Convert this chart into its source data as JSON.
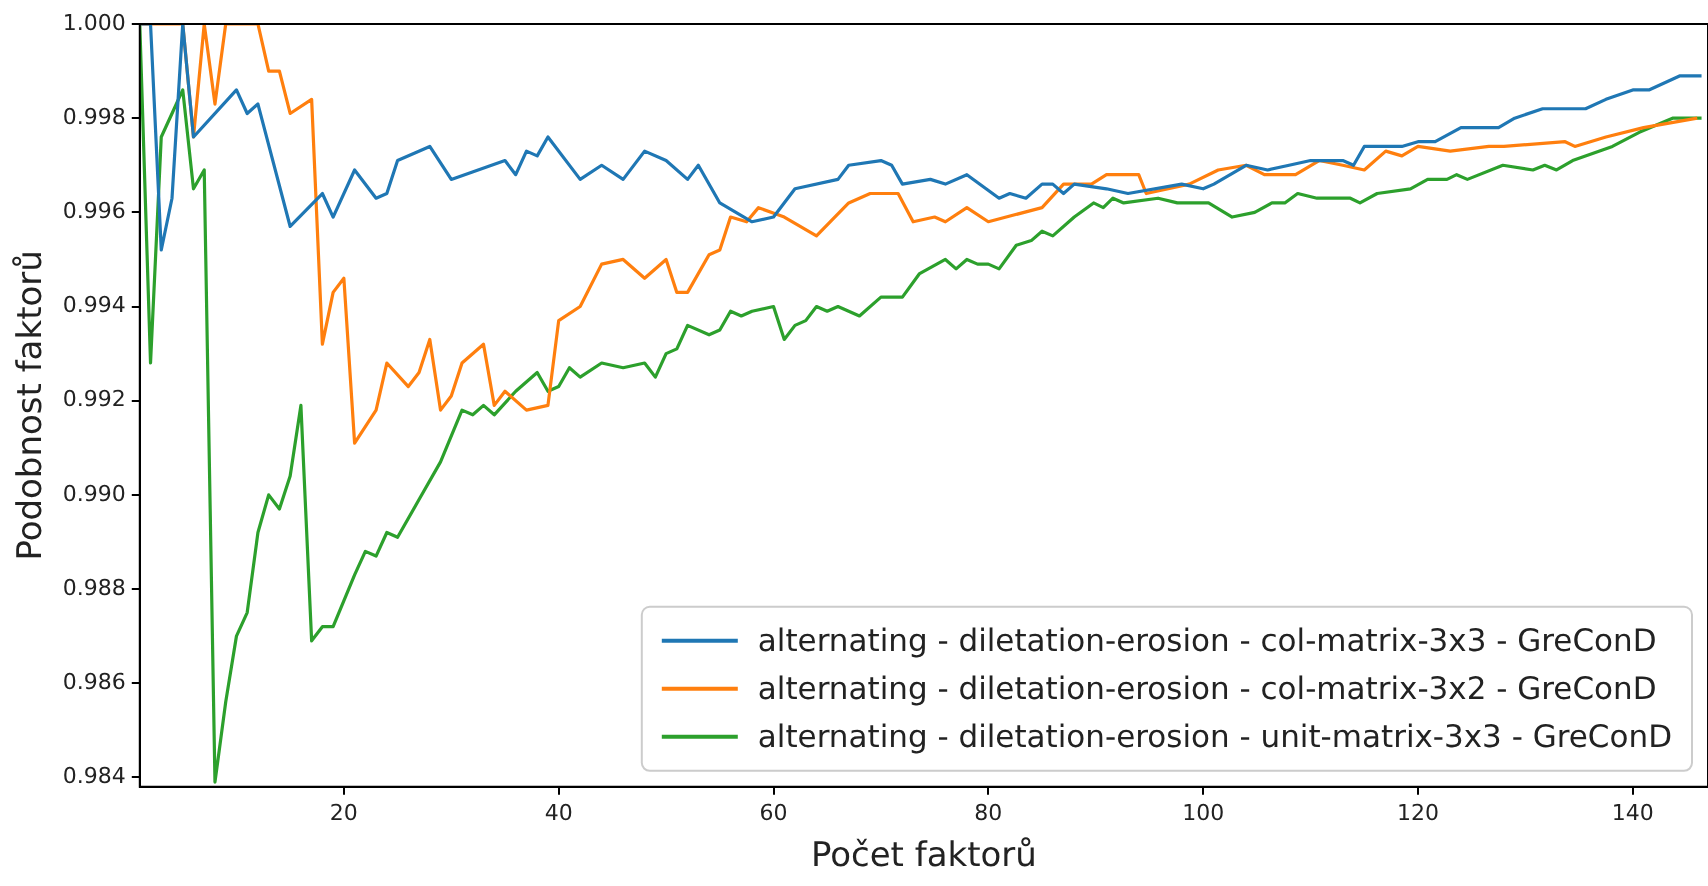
{
  "chart_data": {
    "type": "line",
    "xlabel": "Počet faktorů",
    "ylabel": "Podobnost faktorů",
    "xlim": [
      1,
      147
    ],
    "xticks": [
      20,
      40,
      60,
      80,
      100,
      120,
      140
    ],
    "ylim": [
      0.9838,
      1.0
    ],
    "yticks": [
      0.984,
      0.986,
      0.988,
      {
        "value": 0.99,
        "label": "0.990"
      },
      0.992,
      0.994,
      0.996,
      0.998,
      {
        "value": 1,
        "label": "1.000"
      }
    ],
    "grid": false,
    "legend": "bottom right",
    "marker": "none",
    "line_style": "solid",
    "series": [
      {
        "name": "alternating - diletation-erosion - col-matrix-3x3 - GreConD",
        "color": "#1f77b4",
        "x": [
          1,
          2,
          3,
          4,
          5,
          6,
          10,
          11,
          12,
          15,
          18,
          19,
          21,
          23,
          24,
          25,
          28,
          30,
          35,
          36,
          37,
          38,
          39,
          42,
          44,
          46,
          48,
          50,
          52,
          53,
          55,
          56.5,
          58,
          60,
          62,
          66,
          67,
          70,
          71,
          72,
          74.6,
          76,
          78,
          81,
          82,
          83.5,
          85,
          86,
          87,
          88,
          91,
          93,
          98,
          100,
          101,
          104,
          106,
          108,
          110,
          113,
          114,
          115,
          118.5,
          120,
          121.6,
          124,
          127.5,
          129,
          131.6,
          135.6,
          137.5,
          140,
          141.5,
          144.4,
          146.4
        ],
        "values": [
          1.0,
          1.0,
          0.9952,
          0.9963,
          1.0,
          0.9976,
          0.9986,
          0.9981,
          0.9983,
          0.9957,
          0.9964,
          0.9959,
          0.9969,
          0.9963,
          0.9964,
          0.9971,
          0.9974,
          0.9967,
          0.9971,
          0.9968,
          0.9973,
          0.9972,
          0.9976,
          0.9967,
          0.997,
          0.9967,
          0.9973,
          0.9971,
          0.9967,
          0.997,
          0.9962,
          0.996,
          0.9958,
          0.9959,
          0.9965,
          0.9967,
          0.997,
          0.9971,
          0.997,
          0.9966,
          0.9967,
          0.9966,
          0.9968,
          0.9963,
          0.9964,
          0.9963,
          0.9966,
          0.9966,
          0.9964,
          0.9966,
          0.9965,
          0.9964,
          0.9966,
          0.9965,
          0.9966,
          0.997,
          0.9969,
          0.997,
          0.9971,
          0.9971,
          0.997,
          0.9974,
          0.9974,
          0.9975,
          0.9975,
          0.9978,
          0.9978,
          0.998,
          0.9982,
          0.9982,
          0.9984,
          0.9986,
          0.9986,
          0.9989,
          0.9989
        ]
      },
      {
        "name": "alternating - diletation-erosion - col-matrix-3x2 - GreConD",
        "color": "#ff7f0e",
        "x": [
          1,
          5,
          6,
          7,
          8,
          9,
          12,
          13,
          14,
          15,
          17,
          18,
          19,
          20,
          21,
          23,
          24,
          26,
          27,
          28,
          29,
          30,
          31,
          33,
          34,
          35,
          37,
          39,
          40,
          42,
          44,
          46,
          48,
          50,
          51,
          52,
          54,
          55,
          56,
          57.5,
          58.6,
          61,
          64,
          67,
          69,
          70.5,
          71.6,
          73,
          75,
          76,
          78,
          80,
          85,
          87,
          89.6,
          91,
          94,
          94.7,
          98.7,
          101.4,
          104,
          105.7,
          108.6,
          110.8,
          113,
          115,
          117,
          118.5,
          120,
          123,
          126.6,
          128,
          133.7,
          134.6,
          137.5,
          141,
          146
        ],
        "values": [
          1.0,
          1.0,
          0.9976,
          1.0,
          0.9983,
          1.0,
          1.0,
          0.999,
          0.999,
          0.9981,
          0.9984,
          0.9932,
          0.9943,
          0.9946,
          0.9911,
          0.9918,
          0.9928,
          0.9923,
          0.9926,
          0.9933,
          0.9918,
          0.9921,
          0.9928,
          0.9932,
          0.9919,
          0.9922,
          0.9918,
          0.9919,
          0.9937,
          0.994,
          0.9949,
          0.995,
          0.9946,
          0.995,
          0.9943,
          0.9943,
          0.9951,
          0.9952,
          0.9959,
          0.9958,
          0.9961,
          0.9959,
          0.9955,
          0.9962,
          0.9964,
          0.9964,
          0.9964,
          0.9958,
          0.9959,
          0.9958,
          0.9961,
          0.9958,
          0.9961,
          0.9966,
          0.9966,
          0.9968,
          0.9968,
          0.9964,
          0.9966,
          0.9969,
          0.997,
          0.9968,
          0.9968,
          0.9971,
          0.997,
          0.9969,
          0.9973,
          0.9972,
          0.9974,
          0.9973,
          0.9974,
          0.9974,
          0.9975,
          0.9974,
          0.9976,
          0.9978,
          0.998
        ]
      },
      {
        "name": "alternating - diletation-erosion - unit-matrix-3x3 - GreConD",
        "color": "#2ca02c",
        "x": [
          1,
          2,
          3,
          4,
          5,
          6,
          7,
          8,
          9,
          10,
          11,
          12,
          13,
          14,
          15,
          16,
          17,
          18,
          19,
          21,
          22,
          23,
          24,
          25,
          27,
          29,
          31,
          32,
          33,
          34,
          36,
          38,
          39,
          40,
          41,
          42,
          44,
          46,
          48,
          49,
          50,
          51,
          52,
          54,
          55,
          56,
          57,
          58,
          60,
          61,
          62,
          63,
          64,
          65,
          66,
          68,
          70,
          72,
          73.6,
          76,
          77,
          78,
          79,
          80,
          81,
          82.6,
          84,
          85,
          86,
          88,
          89.8,
          90.7,
          91.6,
          92.6,
          95.8,
          97.6,
          99,
          100.5,
          102.7,
          104.8,
          106.4,
          107.6,
          108.8,
          110.6,
          111.9,
          113.7,
          114.6,
          116.2,
          119.3,
          120.9,
          122.7,
          123.6,
          124.6,
          127.9,
          130.7,
          131.8,
          132.9,
          134.4,
          138.1,
          140.6,
          143.7,
          146.4
        ],
        "values": [
          1.0,
          0.9928,
          0.9976,
          0.9981,
          0.9986,
          0.9965,
          0.9969,
          0.9839,
          0.9856,
          0.987,
          0.9875,
          0.9892,
          0.99,
          0.9897,
          0.9904,
          0.9919,
          0.9869,
          0.9872,
          0.9872,
          0.9883,
          0.9888,
          0.9887,
          0.9892,
          0.9891,
          0.9899,
          0.9907,
          0.9918,
          0.9917,
          0.9919,
          0.9917,
          0.9922,
          0.9926,
          0.9922,
          0.9923,
          0.9927,
          0.9925,
          0.9928,
          0.9927,
          0.9928,
          0.9925,
          0.993,
          0.9931,
          0.9936,
          0.9934,
          0.9935,
          0.9939,
          0.9938,
          0.9939,
          0.994,
          0.9933,
          0.9936,
          0.9937,
          0.994,
          0.9939,
          0.994,
          0.9938,
          0.9942,
          0.9942,
          0.9947,
          0.995,
          0.9948,
          0.995,
          0.9949,
          0.9949,
          0.9948,
          0.9953,
          0.9954,
          0.9956,
          0.9955,
          0.9959,
          0.9962,
          0.9961,
          0.9963,
          0.9962,
          0.9963,
          0.9962,
          0.9962,
          0.9962,
          0.9959,
          0.996,
          0.9962,
          0.9962,
          0.9964,
          0.9963,
          0.9963,
          0.9963,
          0.9962,
          0.9964,
          0.9965,
          0.9967,
          0.9967,
          0.9968,
          0.9967,
          0.997,
          0.9969,
          0.997,
          0.9969,
          0.9971,
          0.9974,
          0.9977,
          0.998,
          0.998
        ]
      }
    ]
  }
}
